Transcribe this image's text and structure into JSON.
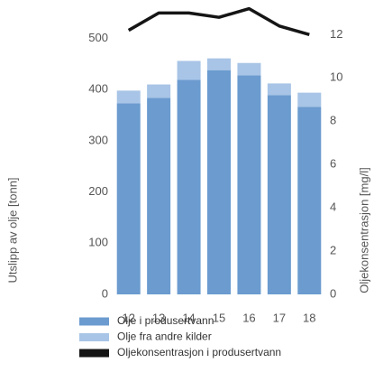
{
  "chart_data": {
    "type": "bar",
    "stacked": true,
    "categories": [
      "12",
      "13",
      "14",
      "15",
      "16",
      "17",
      "18"
    ],
    "series": [
      {
        "name": "Olje i produsertvann",
        "color": "#6b9bcf",
        "values": [
          373,
          384,
          419,
          438,
          428,
          389,
          366
        ]
      },
      {
        "name": "Olje fra andre kilder",
        "color": "#a8c4e6",
        "values": [
          25,
          26,
          37,
          23,
          24,
          23,
          28
        ]
      },
      {
        "name": "Oljekonsentrasjon i produsertvann",
        "color": "#151515",
        "type": "line",
        "axis": "y2",
        "values": [
          12.2,
          13.0,
          13.0,
          12.8,
          13.2,
          12.4,
          12.0
        ]
      }
    ],
    "ylabel": "Utslipp av olje [tonn]",
    "y2label": "Oljekonsentrasjon [mg/l]",
    "ylim": [
      0,
      575
    ],
    "yticks": [
      0,
      100,
      200,
      300,
      400,
      500
    ],
    "y2lim": [
      0,
      13.6
    ],
    "y2ticks": [
      0,
      2,
      4,
      6,
      8,
      10,
      12
    ],
    "grid": false,
    "legend": "bottom"
  }
}
